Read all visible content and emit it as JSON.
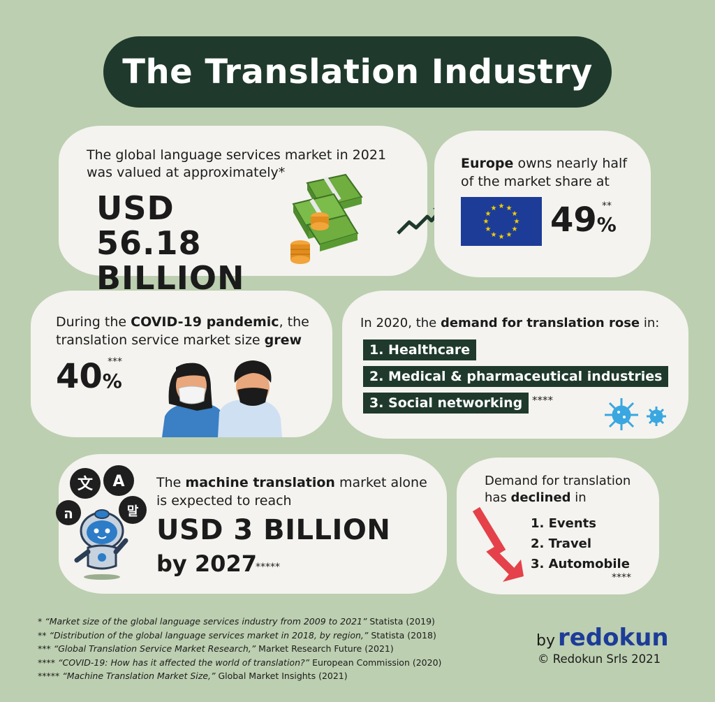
{
  "title": "The Translation Industry",
  "market": {
    "intro": "The global language services market in 2021 was valued at approximately*",
    "value_line1": "USD 56.18",
    "value_line2": "BILLION"
  },
  "europe": {
    "intro_bold": "Europe",
    "intro_rest": " owns nearly half of the market share at",
    "percent": "49",
    "unit": "%",
    "stars": "**"
  },
  "covid": {
    "intro_pre": "During the ",
    "intro_bold1": "COVID-19 pandemic",
    "intro_mid": ", the translation service market size ",
    "intro_bold2": "grew",
    "percent": "40",
    "unit": "%",
    "stars": "***"
  },
  "demand_rose": {
    "intro_pre": "In 2020, the ",
    "intro_bold": "demand for translation rose",
    "intro_post": " in:",
    "items": [
      "1. Healthcare",
      "2. Medical & pharmaceutical industries",
      "3. Social networking"
    ],
    "stars": "****"
  },
  "machine": {
    "intro_pre": "The ",
    "intro_bold": "machine translation",
    "intro_post": " market alone is expected to reach",
    "value": "USD 3 BILLION",
    "by": "by 2027",
    "stars": "*****",
    "bubbles": [
      "文",
      "A",
      "ה",
      "말"
    ]
  },
  "declined": {
    "intro_pre": "Demand for translation has ",
    "intro_bold": "declined",
    "intro_post": " in",
    "items": [
      "1. Events",
      "2. Travel",
      "3. Automobile"
    ],
    "stars": "****"
  },
  "footnotes": [
    {
      "mark": "* ",
      "quote": "“Market size of the global language services industry from 2009 to 2021”",
      "source": " Statista (2019)"
    },
    {
      "mark": "** ",
      "quote": "“Distribution of the global language services market in 2018, by region,”",
      "source": " Statista (2018)"
    },
    {
      "mark": "*** ",
      "quote": "“Global Translation Service Market Research,”",
      "source": " Market Research Future (2021)"
    },
    {
      "mark": "**** ",
      "quote": "“COVID-19: How has it affected the world of translation?”",
      "source": " European Commission (2020)"
    },
    {
      "mark": "***** ",
      "quote": "“Machine Translation Market Size,”",
      "source": " Global Market Insights (2021)"
    }
  ],
  "brand": {
    "by": "by",
    "name": "redokun",
    "copyright": "© Redokun Srls 2021"
  },
  "colors": {
    "background": "#bccfb0",
    "dark_green": "#1f3a2c",
    "eu_blue": "#1d3c98",
    "eu_gold": "#f5d000",
    "arrow_red": "#e4414a",
    "virus_blue": "#3aa7e0"
  }
}
